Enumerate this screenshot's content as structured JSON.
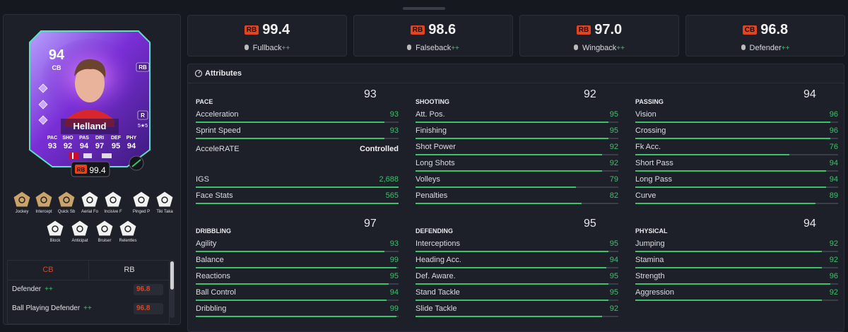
{
  "card": {
    "rating": "94",
    "position": "CB",
    "alt_position": "RB",
    "name": "Helland",
    "foot": "R",
    "skills": "5★5",
    "stats": [
      {
        "label": "PAC",
        "value": 93
      },
      {
        "label": "SHO",
        "value": 92
      },
      {
        "label": "PAS",
        "value": 94
      },
      {
        "label": "DRI",
        "value": 97
      },
      {
        "label": "DEF",
        "value": 95
      },
      {
        "label": "PHY",
        "value": 94
      }
    ],
    "badge": {
      "position": "RB",
      "score": "99.4"
    }
  },
  "roles": [
    {
      "position": "RB",
      "score": "99.4",
      "name": "Fullback",
      "plus": "++"
    },
    {
      "position": "RB",
      "score": "98.6",
      "name": "Falseback",
      "plus": "++"
    },
    {
      "position": "RB",
      "score": "97.0",
      "name": "Wingback",
      "plus": "++"
    },
    {
      "position": "CB",
      "score": "96.8",
      "name": "Defender",
      "plus": "++"
    }
  ],
  "playstyles": [
    "Jockey",
    "Intercept",
    "Quick Sb",
    "Aerial Fo",
    "Incisive F",
    "Pinged P",
    "Tiki Taka",
    "Block",
    "Anticipat",
    "Bruiser",
    "Relentles"
  ],
  "tabs": [
    "CB",
    "RB"
  ],
  "position_roles": [
    {
      "name": "Defender",
      "plus": "++",
      "score": "96.8"
    },
    {
      "name": "Ball Playing Defender",
      "plus": "++",
      "score": "96.8"
    }
  ],
  "attributes": {
    "title": "Attributes",
    "groups": [
      {
        "name": "PACE",
        "rating": 93,
        "items": [
          {
            "label": "Acceleration",
            "value": 93
          },
          {
            "label": "Sprint Speed",
            "value": 93
          },
          {
            "label": "AcceleRATE",
            "value": "Controlled"
          },
          {
            "label": "IGS",
            "value": "2,688"
          },
          {
            "label": "Face Stats",
            "value": 565
          }
        ]
      },
      {
        "name": "SHOOTING",
        "rating": 92,
        "items": [
          {
            "label": "Att. Pos.",
            "value": 95
          },
          {
            "label": "Finishing",
            "value": 95
          },
          {
            "label": "Shot Power",
            "value": 92
          },
          {
            "label": "Long Shots",
            "value": 92
          },
          {
            "label": "Volleys",
            "value": 79
          },
          {
            "label": "Penalties",
            "value": 82
          }
        ]
      },
      {
        "name": "PASSING",
        "rating": 94,
        "items": [
          {
            "label": "Vision",
            "value": 96
          },
          {
            "label": "Crossing",
            "value": 96
          },
          {
            "label": "Fk Acc.",
            "value": 76
          },
          {
            "label": "Short Pass",
            "value": 94
          },
          {
            "label": "Long Pass",
            "value": 94
          },
          {
            "label": "Curve",
            "value": 89
          }
        ]
      },
      {
        "name": "DRIBBLING",
        "rating": 97,
        "items": [
          {
            "label": "Agility",
            "value": 93
          },
          {
            "label": "Balance",
            "value": 99
          },
          {
            "label": "Reactions",
            "value": 95
          },
          {
            "label": "Ball Control",
            "value": 94
          },
          {
            "label": "Dribbling",
            "value": 99
          }
        ]
      },
      {
        "name": "DEFENDING",
        "rating": 95,
        "items": [
          {
            "label": "Interceptions",
            "value": 95
          },
          {
            "label": "Heading Acc.",
            "value": 94
          },
          {
            "label": "Def. Aware.",
            "value": 95
          },
          {
            "label": "Stand Tackle",
            "value": 95
          },
          {
            "label": "Slide Tackle",
            "value": 92
          }
        ]
      },
      {
        "name": "PHYSICAL",
        "rating": 94,
        "items": [
          {
            "label": "Jumping",
            "value": 92
          },
          {
            "label": "Stamina",
            "value": 92
          },
          {
            "label": "Strength",
            "value": 96
          },
          {
            "label": "Aggression",
            "value": 92
          }
        ]
      }
    ]
  }
}
